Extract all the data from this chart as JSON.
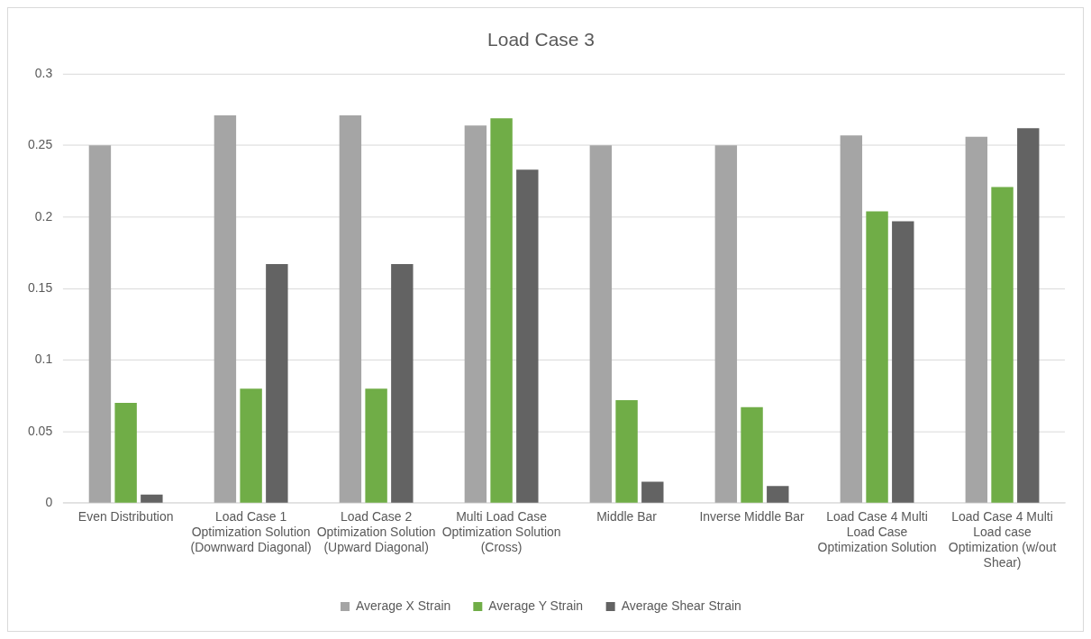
{
  "chart_data": {
    "type": "bar",
    "title": "Load Case 3",
    "categories": [
      "Even Distribution",
      "Load Case 1 Optimization Solution (Downward Diagonal)",
      "Load Case 2 Optimization Solution (Upward Diagonal)",
      "Multi Load Case Optimization Solution (Cross)",
      "Middle Bar",
      "Inverse Middle Bar",
      "Load Case 4 Multi Load Case Optimization Solution",
      "Load Case 4 Multi Load case Optimization (w/out Shear)"
    ],
    "series": [
      {
        "name": "Average X Strain",
        "color": "#a5a5a5",
        "values": [
          0.25,
          0.271,
          0.271,
          0.264,
          0.25,
          0.25,
          0.257,
          0.256
        ]
      },
      {
        "name": "Average Y Strain",
        "color": "#70ad47",
        "values": [
          0.07,
          0.08,
          0.08,
          0.269,
          0.072,
          0.067,
          0.204,
          0.221
        ]
      },
      {
        "name": "Average Shear Strain",
        "color": "#636363",
        "values": [
          0.006,
          0.167,
          0.167,
          0.233,
          0.015,
          0.012,
          0.197,
          0.262
        ]
      }
    ],
    "ylim": [
      0,
      0.3
    ],
    "yticks": [
      0,
      0.05,
      0.1,
      0.15,
      0.2,
      0.25,
      0.3
    ],
    "grid": "y",
    "legend": "bottom"
  }
}
